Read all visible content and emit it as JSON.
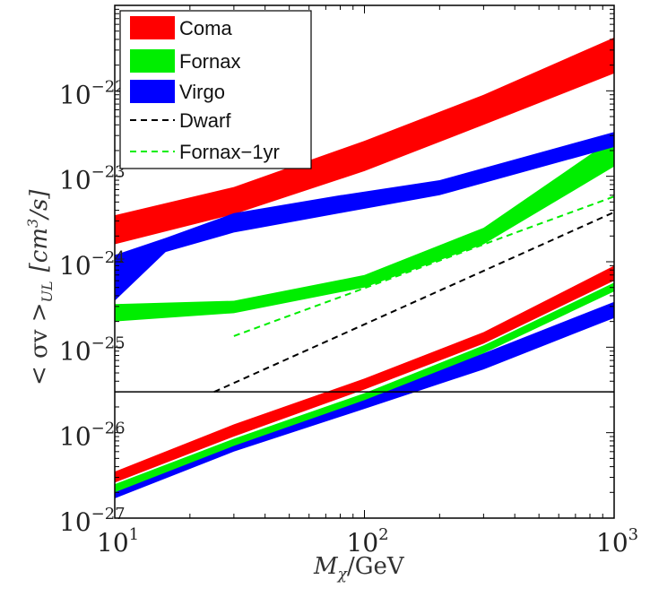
{
  "chart_data": {
    "type": "area",
    "xscale": "log",
    "yscale": "log",
    "xlim": [
      10,
      1000
    ],
    "ylim": [
      1e-27,
      1e-21
    ],
    "xlabel_main": "M",
    "xlabel_sub": "χ",
    "xlabel_tail": "/GeV",
    "ylabel_left": "< σv >",
    "ylabel_sub": "UL",
    "ylabel_units": "[cm",
    "ylabel_units_sup": "3",
    "ylabel_units_tail": "/s]",
    "x_ticks": [
      {
        "value": 10,
        "base": "10",
        "exp": "1"
      },
      {
        "value": 100,
        "base": "10",
        "exp": "2"
      },
      {
        "value": 1000,
        "base": "10",
        "exp": "3"
      }
    ],
    "y_ticks": [
      {
        "value": 1e-27,
        "base": "10",
        "exp": "−27"
      },
      {
        "value": 1e-26,
        "base": "10",
        "exp": "−26"
      },
      {
        "value": 1e-25,
        "base": "10",
        "exp": "−25"
      },
      {
        "value": 1e-24,
        "base": "10",
        "exp": "−24"
      },
      {
        "value": 1e-23,
        "base": "10",
        "exp": "−23"
      },
      {
        "value": 1e-22,
        "base": "10",
        "exp": "−22"
      }
    ],
    "reference_line": {
      "y": 3e-26
    },
    "bands": [
      {
        "name": "Coma",
        "color": "#ff0000",
        "x": [
          10,
          30,
          100,
          300,
          1000
        ],
        "lower": [
          1.6e-24,
          3.6e-24,
          1.15e-23,
          4e-23,
          1.6e-22
        ],
        "upper": [
          3.5e-24,
          7.5e-24,
          2.6e-23,
          9e-23,
          4.2e-22
        ]
      },
      {
        "name": "Fornax",
        "color": "#00ee00",
        "x": [
          10,
          30,
          100,
          300,
          1000
        ],
        "lower": [
          2e-25,
          2.5e-25,
          5e-25,
          1.6e-24,
          1.3e-23
        ],
        "upper": [
          3.2e-25,
          3.5e-25,
          7e-25,
          2.5e-24,
          2.8e-23
        ]
      },
      {
        "name": "Virgo",
        "color": "#0000ff",
        "x": [
          10,
          16,
          30,
          80,
          200,
          1000
        ],
        "lower": [
          3.5e-25,
          1.3e-24,
          2.2e-24,
          3.7e-24,
          6e-24,
          2.2e-23
        ],
        "upper": [
          1.2e-24,
          1.9e-24,
          3.7e-24,
          6e-24,
          9e-24,
          3.3e-23
        ]
      },
      {
        "name": "Coma",
        "color": "#ff0000",
        "x": [
          10,
          30,
          100,
          300,
          1000
        ],
        "lower": [
          2.6e-27,
          9e-27,
          3.2e-26,
          1.1e-25,
          6e-25
        ],
        "upper": [
          3.5e-27,
          1.25e-26,
          4.3e-26,
          1.5e-25,
          9e-25
        ]
      },
      {
        "name": "Virgo",
        "color": "#0000ff",
        "x": [
          10,
          30,
          100,
          300,
          1000
        ],
        "lower": [
          1.7e-27,
          6e-27,
          1.9e-26,
          5.5e-26,
          2.2e-25
        ],
        "upper": [
          2.1e-27,
          7.5e-27,
          2.6e-26,
          8.5e-26,
          3.4e-25
        ]
      },
      {
        "name": "Fornax",
        "color": "#00ee00",
        "x": [
          10,
          30,
          100,
          300,
          1000
        ],
        "lower": [
          2e-27,
          7e-27,
          2.4e-26,
          8.5e-26,
          4.5e-25
        ],
        "upper": [
          2.5e-27,
          8.5e-27,
          2.9e-26,
          1.05e-25,
          5.7e-25
        ]
      }
    ],
    "lines": [
      {
        "name": "Dwarf",
        "color": "#000000",
        "dash": "dashed",
        "x": [
          25,
          1000
        ],
        "y": [
          3e-26,
          3.8e-24
        ]
      },
      {
        "name": "Fornax-1yr",
        "color": "#00ee00",
        "dash": "dashed",
        "x": [
          30,
          1000
        ],
        "y": [
          1.35e-25,
          5.8e-24
        ]
      }
    ],
    "legend": [
      {
        "label": "Coma",
        "color": "#ff0000",
        "kind": "band"
      },
      {
        "label": "Fornax",
        "color": "#00ee00",
        "kind": "band"
      },
      {
        "label": "Virgo",
        "color": "#0000ff",
        "kind": "band"
      },
      {
        "label": "Dwarf",
        "color": "#000000",
        "kind": "dashed"
      },
      {
        "label": "Fornax−1yr",
        "color": "#00ee00",
        "kind": "dashed"
      }
    ],
    "legend_position": "top-left"
  }
}
